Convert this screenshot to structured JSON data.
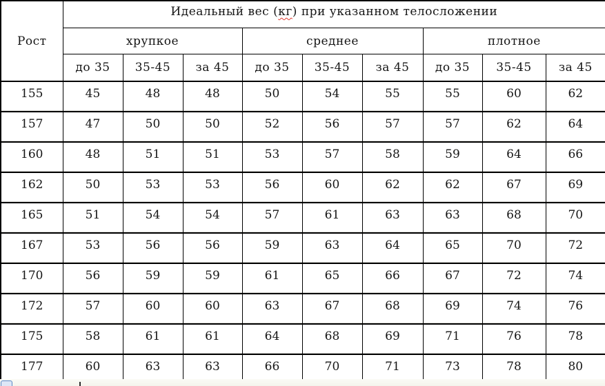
{
  "table": {
    "title_parts": {
      "before": "Идеальный вес (",
      "flagged": "кг",
      "after": ") при указанном телосложении"
    },
    "height_header": "Рост",
    "build_groups": [
      "хрупкое",
      "среднее",
      "плотное"
    ],
    "age_columns": [
      "до 35",
      "35-45",
      "за 45"
    ],
    "rows": [
      {
        "height": "155",
        "values": [
          "45",
          "48",
          "48",
          "50",
          "54",
          "55",
          "55",
          "60",
          "62"
        ]
      },
      {
        "height": "157",
        "values": [
          "47",
          "50",
          "50",
          "52",
          "56",
          "57",
          "57",
          "62",
          "64"
        ]
      },
      {
        "height": "160",
        "values": [
          "48",
          "51",
          "51",
          "53",
          "57",
          "58",
          "59",
          "64",
          "66"
        ]
      },
      {
        "height": "162",
        "values": [
          "50",
          "53",
          "53",
          "56",
          "60",
          "62",
          "62",
          "67",
          "69"
        ]
      },
      {
        "height": "165",
        "values": [
          "51",
          "54",
          "54",
          "57",
          "61",
          "63",
          "63",
          "68",
          "70"
        ]
      },
      {
        "height": "167",
        "values": [
          "53",
          "56",
          "56",
          "59",
          "63",
          "64",
          "65",
          "70",
          "72"
        ]
      },
      {
        "height": "170",
        "values": [
          "56",
          "59",
          "59",
          "61",
          "65",
          "66",
          "67",
          "72",
          "74"
        ]
      },
      {
        "height": "172",
        "values": [
          "57",
          "60",
          "60",
          "63",
          "67",
          "68",
          "69",
          "74",
          "76"
        ]
      },
      {
        "height": "175",
        "values": [
          "58",
          "61",
          "61",
          "64",
          "68",
          "69",
          "71",
          "76",
          "78"
        ]
      },
      {
        "height": "177",
        "values": [
          "60",
          "63",
          "63",
          "66",
          "70",
          "71",
          "73",
          "78",
          "80"
        ]
      }
    ]
  },
  "colors": {
    "border": "#000000",
    "spellcheck_underline": "#e03a2f",
    "text": "#151515",
    "background": "#ffffff"
  }
}
